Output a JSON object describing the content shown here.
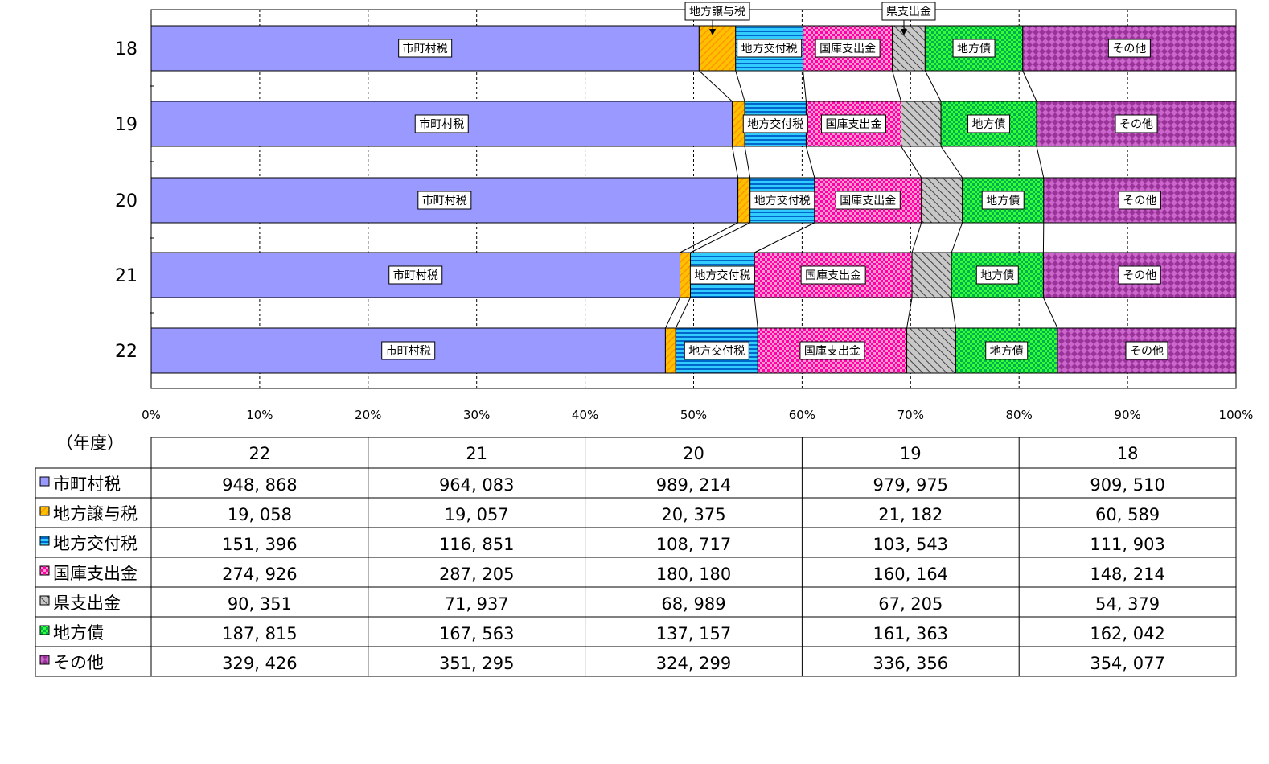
{
  "chart_data": {
    "type": "bar",
    "orientation": "horizontal",
    "stacked": "percent",
    "categories": [
      "18",
      "19",
      "20",
      "21",
      "22"
    ],
    "series": [
      {
        "name": "市町村税",
        "label": "市町村税",
        "color": "#9999ff",
        "pattern": "solid",
        "values": [
          909510,
          979975,
          989214,
          964083,
          948868
        ]
      },
      {
        "name": "地方譲与税",
        "label": "地方譲与税",
        "color": "#ffc000",
        "pattern": "diag-orange",
        "values": [
          60589,
          21182,
          20375,
          19057,
          19058
        ]
      },
      {
        "name": "地方交付税",
        "label": "地方交付税",
        "color": "#33ccff",
        "pattern": "hstripe-blue",
        "values": [
          111903,
          103543,
          108717,
          116851,
          151396
        ]
      },
      {
        "name": "国庫支出金",
        "label": "国庫支出金",
        "color": "#ff00aa",
        "pattern": "check-pink",
        "values": [
          148214,
          160164,
          180180,
          287205,
          274926
        ]
      },
      {
        "name": "県支出金",
        "label": "県支出金",
        "color": "#c0c0c0",
        "pattern": "diag-gray",
        "values": [
          54379,
          67205,
          68989,
          71937,
          90351
        ]
      },
      {
        "name": "地方債",
        "label": "地方債",
        "color": "#00cc00",
        "pattern": "check-green",
        "values": [
          162042,
          161363,
          137157,
          167563,
          187815
        ]
      },
      {
        "name": "その他",
        "label": "その他",
        "color": "#993399",
        "pattern": "diag-purple",
        "values": [
          354077,
          336356,
          324299,
          351295,
          329426
        ]
      }
    ],
    "callouts": [
      "地方譲与税",
      "県支出金"
    ],
    "x_ticks": [
      "0%",
      "10%",
      "20%",
      "30%",
      "40%",
      "50%",
      "60%",
      "70%",
      "80%",
      "90%",
      "100%"
    ],
    "xlim": [
      0,
      100
    ],
    "grid": "vertical dashed",
    "series_lines": true,
    "table": {
      "corner_label": "（年度）",
      "columns": [
        "22",
        "21",
        "20",
        "19",
        "18"
      ],
      "rows": [
        {
          "name": "市町村税",
          "values": [
            "948, 868",
            "964, 083",
            "989, 214",
            "979, 975",
            "909, 510"
          ]
        },
        {
          "name": "地方譲与税",
          "values": [
            "19, 058",
            "19, 057",
            "20, 375",
            "21, 182",
            "60, 589"
          ]
        },
        {
          "name": "地方交付税",
          "values": [
            "151, 396",
            "116, 851",
            "108, 717",
            "103, 543",
            "111, 903"
          ]
        },
        {
          "name": "国庫支出金",
          "values": [
            "274, 926",
            "287, 205",
            "180, 180",
            "160, 164",
            "148, 214"
          ]
        },
        {
          "name": "県支出金",
          "values": [
            "90, 351",
            "71, 937",
            "68, 989",
            "67, 205",
            "54, 379"
          ]
        },
        {
          "name": "地方債",
          "values": [
            "187, 815",
            "167, 563",
            "137, 157",
            "161, 363",
            "162, 042"
          ]
        },
        {
          "name": "その他",
          "values": [
            "329, 426",
            "351, 295",
            "324, 299",
            "336, 356",
            "354, 077"
          ]
        }
      ]
    }
  }
}
